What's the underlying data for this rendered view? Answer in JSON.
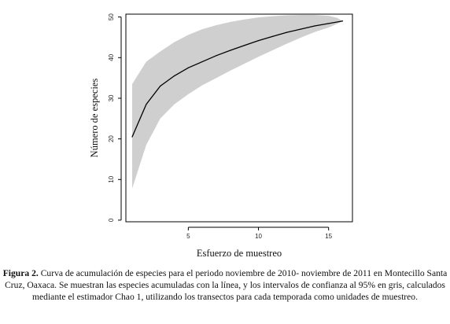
{
  "chart_data": {
    "type": "line",
    "xlabel": "Esfuerzo de muestreo",
    "ylabel": "Número de especies",
    "xlim": [
      0.55,
      16.7
    ],
    "ylim": [
      -0.4,
      50.7
    ],
    "xticks": [
      5,
      10,
      15
    ],
    "yticks": [
      0,
      10,
      20,
      30,
      40,
      50
    ],
    "series": [
      {
        "x": [
          1,
          2,
          3,
          4,
          5,
          6,
          7,
          8,
          9,
          10,
          11,
          12,
          13,
          14,
          15,
          16
        ],
        "y": [
          20.5,
          28.5,
          33.0,
          35.5,
          37.5,
          39.0,
          40.5,
          41.8,
          43.0,
          44.2,
          45.2,
          46.2,
          47.0,
          47.8,
          48.4,
          49.0
        ]
      }
    ],
    "confidence_band": {
      "x": [
        1,
        2,
        3,
        4,
        5,
        6,
        7,
        8,
        9,
        10,
        11,
        12,
        13,
        14,
        15,
        15.6,
        16
      ],
      "lower": [
        7.8,
        18.5,
        25.0,
        28.5,
        31.0,
        33.2,
        35.0,
        36.8,
        38.5,
        40.2,
        41.8,
        43.4,
        44.9,
        46.3,
        47.4,
        48.3,
        49.0
      ],
      "upper": [
        33.5,
        39.0,
        41.5,
        43.8,
        45.6,
        47.0,
        48.0,
        48.8,
        49.4,
        49.9,
        50.2,
        50.4,
        50.5,
        50.5,
        50.3,
        49.8,
        49.0
      ]
    },
    "line_color": "#000000",
    "band_color": "#cfcfcf",
    "grid": false,
    "legend": false
  },
  "caption": {
    "label": "Figura 2.",
    "text": "Curva de acumulación de especies para el periodo noviembre de 2010- noviembre de 2011 en Montecillo Santa Cruz, Oaxaca. Se muestran las especies acumuladas con la línea, y los intervalos de confianza al 95% en gris, calculados mediante el estimador Chao 1, utilizando los transectos para cada temporada como unidades de muestreo."
  }
}
